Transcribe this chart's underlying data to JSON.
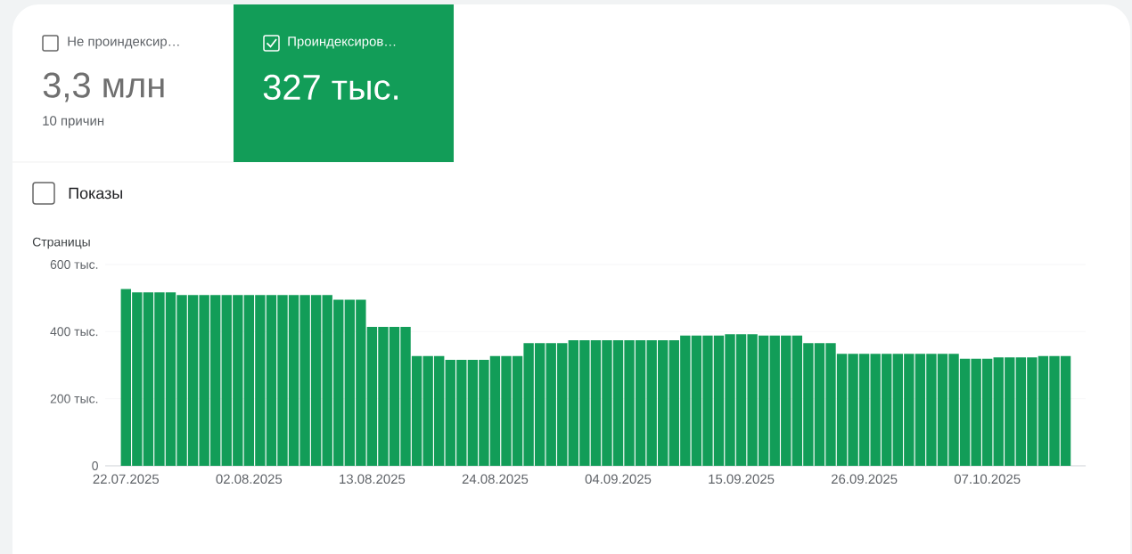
{
  "chart_data": {
    "type": "bar",
    "ylabel": "Страницы",
    "annotations": [
      "Не проиндексир…",
      "3,3 млн",
      "10 причин",
      "Проиндексиров…",
      "327 тыс.",
      "Показы"
    ],
    "categories": [
      "22.07.2025",
      null,
      null,
      null,
      null,
      null,
      null,
      null,
      null,
      null,
      null,
      "02.08.2025",
      null,
      null,
      null,
      null,
      null,
      null,
      null,
      null,
      null,
      null,
      "13.08.2025",
      null,
      null,
      null,
      null,
      null,
      null,
      null,
      null,
      null,
      null,
      "24.08.2025",
      null,
      null,
      null,
      null,
      null,
      null,
      null,
      null,
      null,
      null,
      "04.09.2025",
      null,
      null,
      null,
      null,
      null,
      null,
      null,
      null,
      null,
      null,
      "15.09.2025",
      null,
      null,
      null,
      null,
      null,
      null,
      null,
      null,
      null,
      null,
      "26.09.2025",
      null,
      null,
      null,
      null,
      null,
      null,
      null,
      null,
      null,
      null,
      "07.10.2025",
      null,
      null,
      null,
      null,
      null,
      null,
      null
    ],
    "values": [
      527,
      517,
      517,
      517,
      517,
      509,
      509,
      509,
      509,
      509,
      509,
      509,
      509,
      509,
      509,
      509,
      509,
      509,
      509,
      495,
      495,
      495,
      414,
      414,
      414,
      414,
      327,
      327,
      327,
      316,
      316,
      316,
      316,
      327,
      327,
      327,
      366,
      366,
      366,
      366,
      374,
      374,
      374,
      374,
      374,
      374,
      374,
      374,
      374,
      374,
      388,
      388,
      388,
      388,
      392,
      392,
      392,
      388,
      388,
      388,
      388,
      366,
      366,
      366,
      334,
      334,
      334,
      334,
      334,
      334,
      334,
      334,
      334,
      334,
      334,
      319,
      319,
      319,
      323,
      323,
      323,
      323,
      327,
      327,
      327
    ],
    "color": "#129d58",
    "ylim": [
      0,
      600
    ],
    "yticks": [
      0,
      {
        "value": 200,
        "label": "200 тыс."
      },
      {
        "value": 400,
        "label": "400 тыс."
      },
      {
        "value": 600,
        "label": "600 тыс."
      }
    ],
    "grid": "y"
  }
}
